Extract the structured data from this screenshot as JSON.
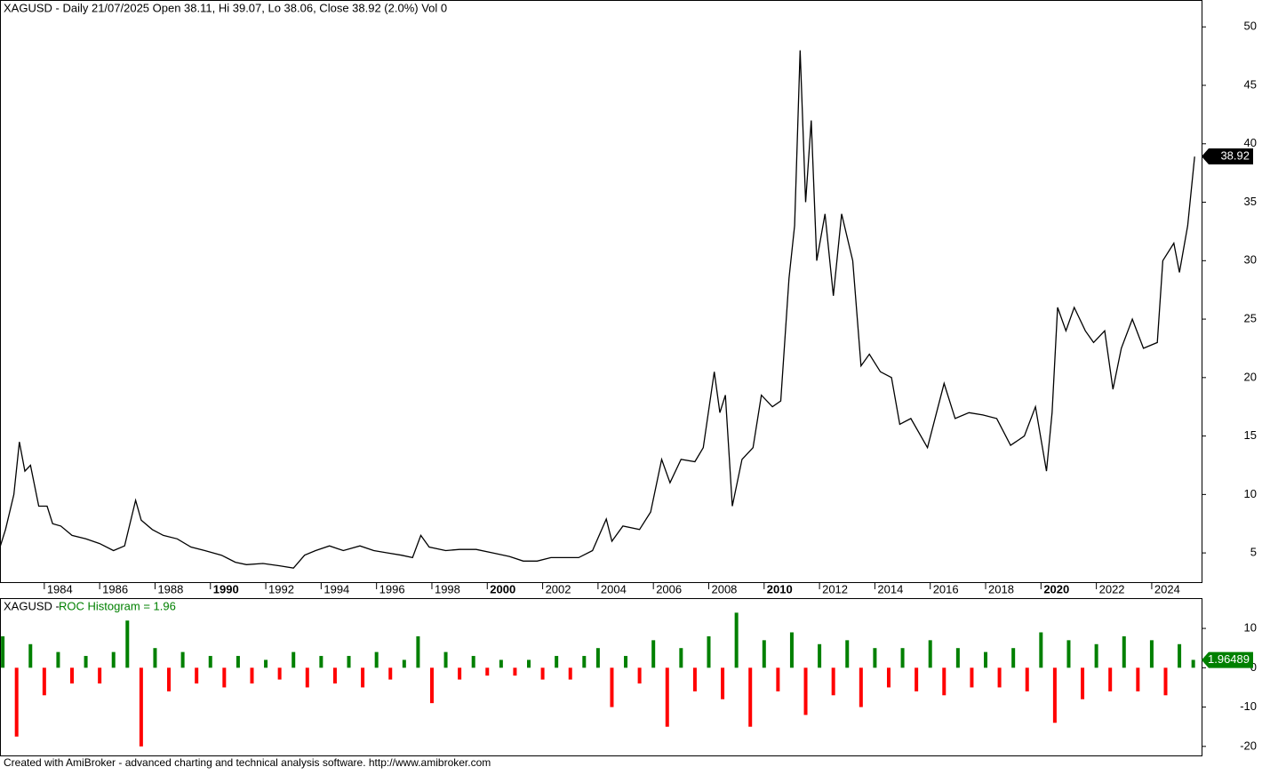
{
  "chart_data": [
    {
      "type": "line",
      "title": "XAGUSD - Daily 21/07/2025 Open 38.11, Hi 39.07, Lo 38.06, Close 38.92 (2.0%) Vol 0",
      "color": "#000000",
      "x": [
        1982.4,
        1982.6,
        1982.9,
        1983.1,
        1983.3,
        1983.5,
        1983.8,
        1984.1,
        1984.3,
        1984.6,
        1985.0,
        1985.5,
        1986.0,
        1986.5,
        1986.9,
        1987.3,
        1987.5,
        1987.9,
        1988.3,
        1988.8,
        1989.3,
        1989.8,
        1990.4,
        1990.9,
        1991.3,
        1991.9,
        1992.5,
        1993.0,
        1993.4,
        1993.8,
        1994.3,
        1994.8,
        1995.4,
        1995.9,
        1996.4,
        1996.9,
        1997.3,
        1997.6,
        1997.9,
        1998.5,
        1999.0,
        1999.6,
        2000.2,
        2000.8,
        2001.3,
        2001.8,
        2002.3,
        2002.8,
        2003.3,
        2003.8,
        2004.3,
        2004.5,
        2004.9,
        2005.5,
        2005.9,
        2006.3,
        2006.6,
        2007.0,
        2007.5,
        2007.8,
        2008.2,
        2008.4,
        2008.6,
        2008.85,
        2009.2,
        2009.6,
        2009.9,
        2010.3,
        2010.6,
        2010.9,
        2011.1,
        2011.3,
        2011.5,
        2011.7,
        2011.9,
        2012.2,
        2012.5,
        2012.8,
        2013.2,
        2013.5,
        2013.8,
        2014.2,
        2014.6,
        2014.9,
        2015.3,
        2015.9,
        2016.5,
        2016.9,
        2017.4,
        2017.9,
        2018.4,
        2018.9,
        2019.4,
        2019.8,
        2020.2,
        2020.4,
        2020.6,
        2020.9,
        2021.2,
        2021.6,
        2021.9,
        2022.3,
        2022.6,
        2022.9,
        2023.3,
        2023.7,
        2024.2,
        2024.4,
        2024.8,
        2025.0,
        2025.3,
        2025.55
      ],
      "values": [
        5.5,
        7,
        10,
        14.5,
        12,
        12.5,
        9,
        9,
        7.5,
        7.3,
        6.5,
        6.2,
        5.8,
        5.2,
        5.6,
        9.5,
        7.8,
        7,
        6.5,
        6.2,
        5.5,
        5.2,
        4.8,
        4.2,
        4.0,
        4.1,
        3.9,
        3.7,
        4.8,
        5.2,
        5.6,
        5.2,
        5.6,
        5.2,
        5.0,
        4.8,
        4.6,
        6.5,
        5.5,
        5.2,
        5.3,
        5.3,
        5.0,
        4.7,
        4.3,
        4.3,
        4.6,
        4.6,
        4.6,
        5.2,
        7.9,
        6,
        7.3,
        7.0,
        8.5,
        13,
        11,
        13,
        12.8,
        14,
        20.5,
        17,
        18.5,
        9,
        13,
        14,
        18.5,
        17.5,
        18,
        28.5,
        33,
        48,
        35,
        42,
        30,
        34,
        27,
        34,
        30,
        21,
        22,
        20.5,
        20,
        16,
        16.5,
        14,
        19.5,
        16.5,
        17,
        16.8,
        16.5,
        14.2,
        15,
        17.5,
        12,
        17,
        26,
        24,
        26,
        24,
        23,
        24,
        19,
        22.5,
        25,
        22.5,
        23,
        30,
        31.5,
        29,
        33,
        38.9
      ],
      "last": {
        "value": 38.92,
        "label": "38.92"
      },
      "xlim": [
        1982.4,
        2025.8
      ],
      "ylim": [
        2.5,
        52.3
      ],
      "xticks": [
        1984,
        1986,
        1988,
        1990,
        1992,
        1994,
        1996,
        1998,
        2000,
        2002,
        2004,
        2006,
        2008,
        2010,
        2012,
        2014,
        2016,
        2018,
        2020,
        2022,
        2024
      ],
      "yticks": [
        5,
        10,
        15,
        20,
        25,
        30,
        35,
        40,
        45,
        50
      ]
    },
    {
      "type": "histogram",
      "title": "XAGUSD -",
      "indicator": "ROC Histogram = 1.96",
      "up_color": "#008000",
      "down_color": "#ff0000",
      "x": [
        1982.5,
        1983,
        1983.5,
        1984,
        1984.5,
        1985,
        1985.5,
        1986,
        1986.5,
        1987,
        1987.5,
        1988,
        1988.5,
        1989,
        1989.5,
        1990,
        1990.5,
        1991,
        1991.5,
        1992,
        1992.5,
        1993,
        1993.5,
        1994,
        1994.5,
        1995,
        1995.5,
        1996,
        1996.5,
        1997,
        1997.5,
        1998,
        1998.5,
        1999,
        1999.5,
        2000,
        2000.5,
        2001,
        2001.5,
        2002,
        2002.5,
        2003,
        2003.5,
        2004,
        2004.5,
        2005,
        2005.5,
        2006,
        2006.5,
        2007,
        2007.5,
        2008,
        2008.5,
        2009,
        2009.5,
        2010,
        2010.5,
        2011,
        2011.5,
        2012,
        2012.5,
        2013,
        2013.5,
        2014,
        2014.5,
        2015,
        2015.5,
        2016,
        2016.5,
        2017,
        2017.5,
        2018,
        2018.5,
        2019,
        2019.5,
        2020,
        2020.5,
        2021,
        2021.5,
        2022,
        2022.5,
        2023,
        2023.5,
        2024,
        2024.5,
        2025,
        2025.5
      ],
      "values": [
        8,
        -17.5,
        6,
        -7,
        4,
        -4,
        3,
        -4,
        4,
        12,
        -20,
        5,
        -6,
        4,
        -4,
        3,
        -5,
        3,
        -4,
        2,
        -3,
        4,
        -5,
        3,
        -4,
        3,
        -5,
        4,
        -3,
        2,
        8,
        -9,
        4,
        -3,
        3,
        -2,
        2,
        -2,
        2,
        -3,
        3,
        -3,
        3,
        5,
        -10,
        3,
        -4,
        7,
        -15,
        5,
        -6,
        8,
        -8,
        14,
        -15,
        7,
        -6,
        9,
        -12,
        6,
        -7,
        7,
        -10,
        5,
        -5,
        5,
        -6,
        7,
        -7,
        5,
        -5,
        4,
        -5,
        5,
        -6,
        9,
        -14,
        7,
        -8,
        6,
        -6,
        8,
        -6,
        7,
        -7,
        6,
        2
      ],
      "last": {
        "value": 1.96489,
        "label": "1.96489"
      },
      "xlim": [
        1982.4,
        2025.8
      ],
      "ylim": [
        -22.3,
        17.7
      ],
      "yticks": [
        -20,
        -10,
        0,
        10
      ]
    }
  ],
  "footer": "Created with AmiBroker - advanced charting and technical analysis software. http://www.amibroker.com"
}
